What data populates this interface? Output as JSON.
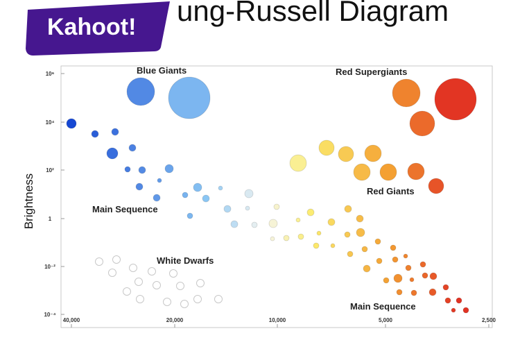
{
  "logo": "Kahoot!",
  "title": "ung-Russell Diagram",
  "y_axis_label": "Brightness",
  "y_ticks": [
    "10⁶",
    "10⁴",
    "10²",
    "1",
    "10⁻²",
    "10⁻⁴"
  ],
  "x_ticks": [
    "40,000",
    "20,000",
    "10,000",
    "5,000",
    "2,500"
  ],
  "regions": [
    "Blue Giants",
    "Red Supergiants",
    "Main Sequence",
    "Red Giants",
    "White Dwarfs",
    "Main Sequence"
  ]
}
